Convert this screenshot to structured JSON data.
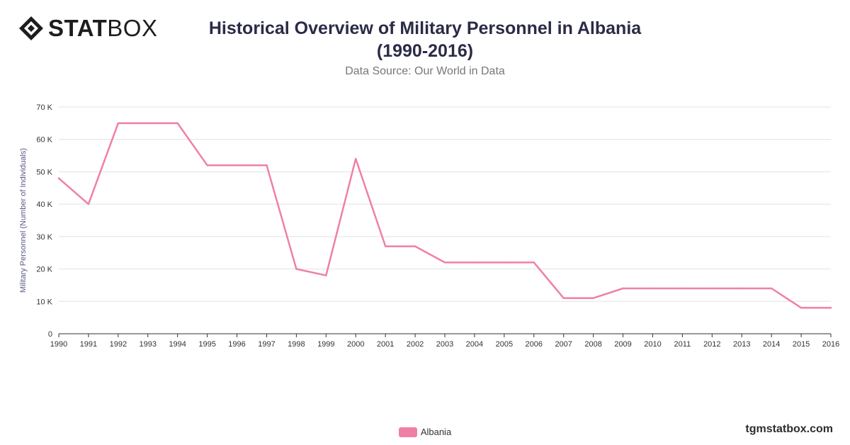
{
  "brand": {
    "bold": "STAT",
    "light": "BOX",
    "mark_icon": "diamond-logo-icon"
  },
  "title_line1": "Historical Overview of Military Personnel in Albania",
  "title_line2": "(1990-2016)",
  "subtitle": "Data Source: Our World in Data",
  "footer": "tgmstatbox.com",
  "colors": {
    "series": "#f07fa8",
    "grid": "#e2e2e2",
    "axis_text": "#333333",
    "ylabel": "#5a5a8a"
  },
  "chart_data": {
    "type": "line",
    "title": "Historical Overview of Military Personnel in Albania (1990-2016)",
    "subtitle": "Data Source: Our World in Data",
    "xlabel": "",
    "ylabel": "Military Personnel (Number of Individuals)",
    "x": [
      "1990",
      "1991",
      "1992",
      "1993",
      "1994",
      "1995",
      "1996",
      "1997",
      "1998",
      "1999",
      "2000",
      "2001",
      "2002",
      "2003",
      "2004",
      "2005",
      "2006",
      "2007",
      "2008",
      "2009",
      "2010",
      "2011",
      "2012",
      "2013",
      "2014",
      "2015",
      "2016"
    ],
    "series": [
      {
        "name": "Albania",
        "values": [
          48000,
          40000,
          65000,
          65000,
          65000,
          52000,
          52000,
          52000,
          20000,
          18000,
          54000,
          27000,
          27000,
          22000,
          22000,
          22000,
          22000,
          11000,
          11000,
          14000,
          14000,
          14000,
          14000,
          14000,
          14000,
          8000,
          8000
        ]
      }
    ],
    "ylim": [
      0,
      70000
    ],
    "yticks": [
      0,
      10000,
      20000,
      30000,
      40000,
      50000,
      60000,
      70000
    ],
    "ytick_labels": [
      "0",
      "10 K",
      "20 K",
      "30 K",
      "40 K",
      "50 K",
      "60 K",
      "70 K"
    ],
    "grid": true,
    "legend": "bottom-center"
  }
}
